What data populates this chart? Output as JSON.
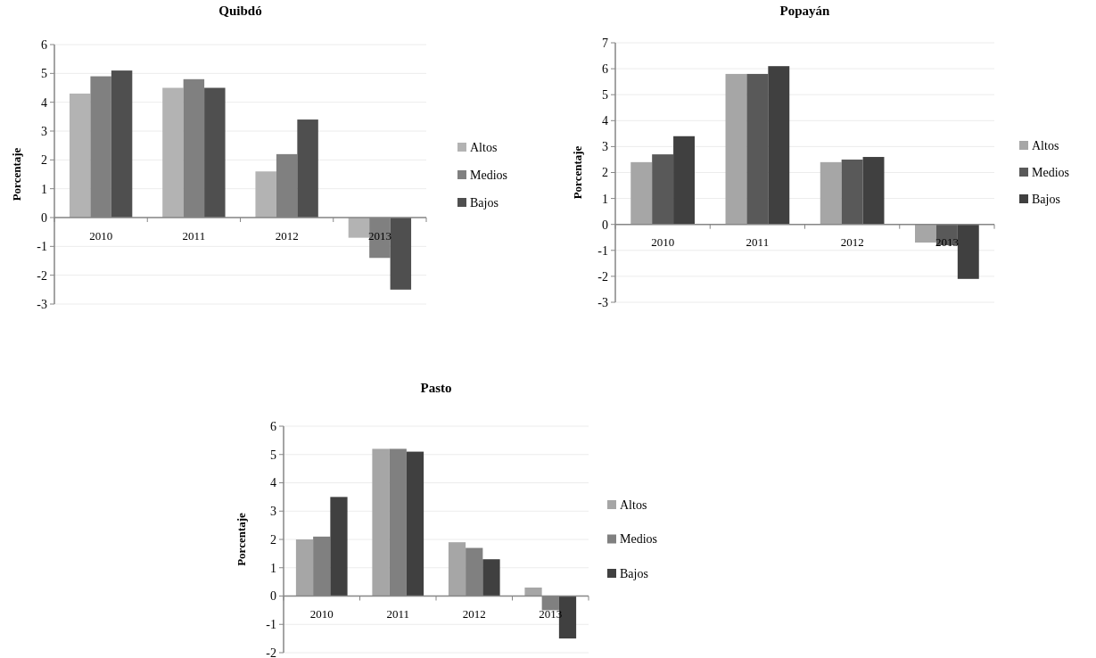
{
  "chart_data": [
    {
      "type": "bar",
      "title": "Quibdó",
      "ylabel": "Porcentaje",
      "categories": [
        "2010",
        "2011",
        "2012",
        "2013"
      ],
      "series": [
        {
          "name": "Altos",
          "color": "#b3b3b3",
          "values": [
            4.3,
            4.5,
            1.6,
            -0.7
          ]
        },
        {
          "name": "Medios",
          "color": "#808080",
          "values": [
            4.9,
            4.8,
            2.2,
            -1.4
          ]
        },
        {
          "name": "Bajos",
          "color": "#4f4f4f",
          "values": [
            5.1,
            4.5,
            3.4,
            -2.5
          ]
        }
      ],
      "ylim": [
        -3,
        6
      ],
      "yticks": [
        -3,
        -2,
        -1,
        0,
        1,
        2,
        3,
        4,
        5,
        6
      ],
      "grid": "y",
      "legend": "right"
    },
    {
      "type": "bar",
      "title": "Popayán",
      "ylabel": "Porcentaje",
      "categories": [
        "2010",
        "2011",
        "2012",
        "2013"
      ],
      "series": [
        {
          "name": "Altos",
          "color": "#a6a6a6",
          "values": [
            2.4,
            5.8,
            2.4,
            -0.7
          ]
        },
        {
          "name": "Medios",
          "color": "#595959",
          "values": [
            2.7,
            5.8,
            2.5,
            -0.8
          ]
        },
        {
          "name": "Bajos",
          "color": "#404040",
          "values": [
            3.4,
            6.1,
            2.6,
            -2.1
          ]
        }
      ],
      "ylim": [
        -3,
        7
      ],
      "yticks": [
        -3,
        -2,
        -1,
        0,
        1,
        2,
        3,
        4,
        5,
        6,
        7
      ],
      "grid": "y",
      "legend": "right"
    },
    {
      "type": "bar",
      "title": "Pasto",
      "ylabel": "Porcentaje",
      "categories": [
        "2010",
        "2011",
        "2012",
        "2013"
      ],
      "series": [
        {
          "name": "Altos",
          "color": "#a6a6a6",
          "values": [
            2.0,
            5.2,
            1.9,
            0.3
          ]
        },
        {
          "name": "Medios",
          "color": "#808080",
          "values": [
            2.1,
            5.2,
            1.7,
            -0.5
          ]
        },
        {
          "name": "Bajos",
          "color": "#404040",
          "values": [
            3.5,
            5.1,
            1.3,
            -1.5
          ]
        }
      ],
      "ylim": [
        -2,
        6
      ],
      "yticks": [
        -2,
        -1,
        0,
        1,
        2,
        3,
        4,
        5,
        6
      ],
      "grid": "y",
      "legend": "right"
    }
  ]
}
